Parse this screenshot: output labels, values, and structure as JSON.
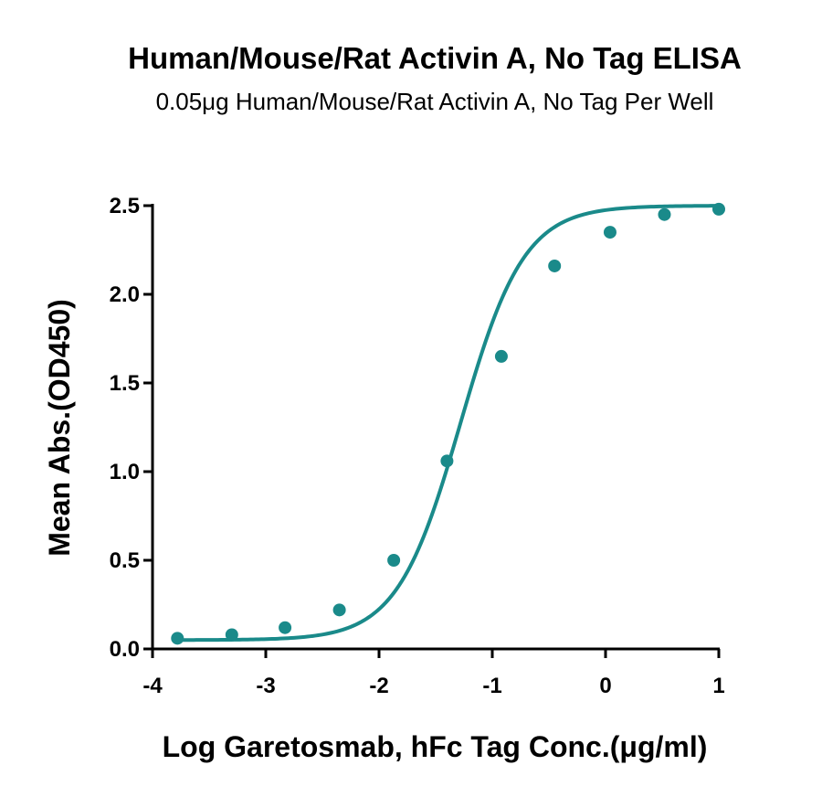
{
  "chart_data": {
    "type": "line",
    "title": "Human/Mouse/Rat Activin A, No Tag ELISA",
    "subtitle": "0.05μg Human/Mouse/Rat Activin A, No Tag Per Well",
    "xlabel": "Log Garetosmab, hFc Tag Conc.(μg/ml)",
    "ylabel": "Mean Abs.(OD450)",
    "xlim": [
      -4,
      1
    ],
    "ylim": [
      0,
      2.5
    ],
    "x_ticks": [
      -4,
      -3,
      -2,
      -1,
      0,
      1
    ],
    "x_tick_labels": [
      "-4",
      "-3",
      "-2",
      "-1",
      "0",
      "1"
    ],
    "y_ticks": [
      0,
      0.5,
      1.0,
      1.5,
      2.0,
      2.5
    ],
    "y_tick_labels": [
      "0.0",
      "0.5",
      "1.0",
      "1.5",
      "2.0",
      "2.5"
    ],
    "grid": false,
    "legend": "none",
    "color": "#1a8a8a",
    "series": [
      {
        "x": [
          -3.78,
          -3.3,
          -2.83,
          -2.35,
          -1.87,
          -1.4,
          -0.92,
          -0.45,
          0.04,
          0.52,
          1.0
        ],
        "y": [
          0.06,
          0.08,
          0.12,
          0.22,
          0.5,
          1.06,
          1.65,
          2.16,
          2.35,
          2.45,
          2.48
        ]
      }
    ]
  }
}
